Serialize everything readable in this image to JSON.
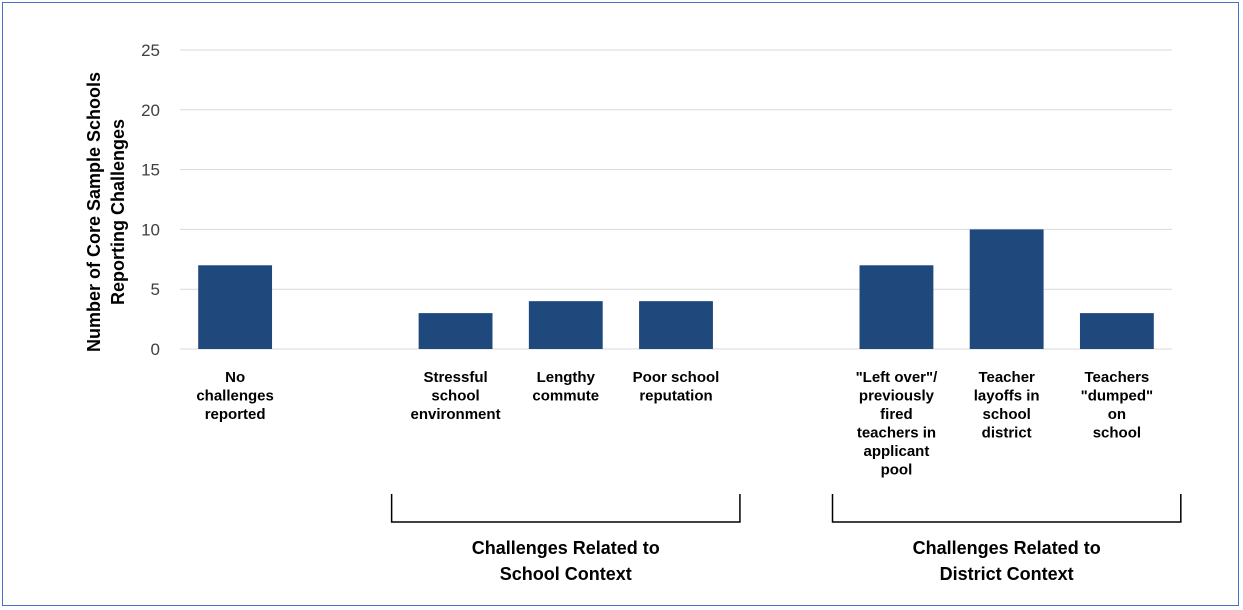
{
  "chart_data": {
    "type": "bar",
    "categories": [
      [
        "No",
        "challenges",
        "reported"
      ],
      [],
      [
        "Stressful",
        "school",
        "environment"
      ],
      [
        "Lengthy",
        "commute"
      ],
      [
        "Poor school",
        "reputation"
      ],
      [],
      [
        "\"Left over\"/",
        "previously",
        "fired",
        "teachers in",
        "applicant",
        "pool"
      ],
      [
        "Teacher",
        "layoffs in",
        "school",
        "district"
      ],
      [
        "Teachers",
        "\"dumped\"",
        "on",
        "school"
      ]
    ],
    "values": [
      7,
      null,
      3,
      4,
      4,
      null,
      7,
      10,
      3
    ],
    "ylabel": [
      "Number of Core Sample Schools",
      "Reporting Challenges"
    ],
    "ylim": [
      0,
      25
    ],
    "yticks": [
      0,
      5,
      10,
      15,
      20,
      25
    ],
    "grid": true,
    "bar_color": "#1f497d",
    "grid_color": "#d9d9d9",
    "groups": [
      {
        "label": [
          "Challenges Related to",
          "School Context"
        ],
        "categories": [
          2,
          4
        ]
      },
      {
        "label": [
          "Challenges Related to",
          "District Context"
        ],
        "categories": [
          6,
          8
        ]
      }
    ]
  }
}
